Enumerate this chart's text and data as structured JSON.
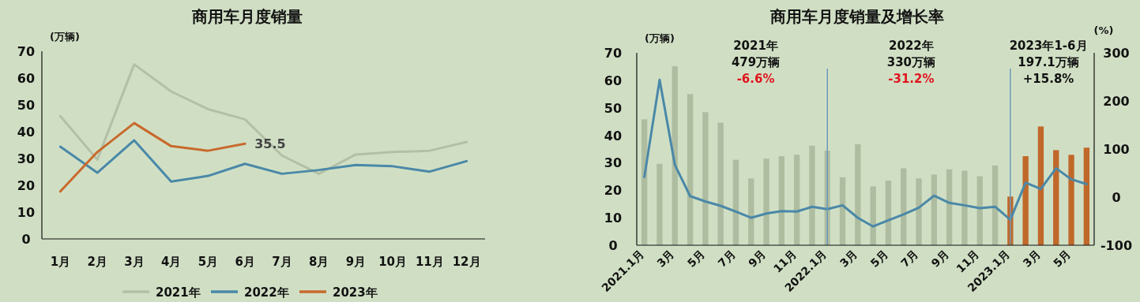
{
  "chart_data": [
    {
      "type": "line",
      "title": "商用车月度销量",
      "ylabel": "(万辆)",
      "categories": [
        "1月",
        "2月",
        "3月",
        "4月",
        "5月",
        "6月",
        "7月",
        "8月",
        "9月",
        "10月",
        "11月",
        "12月"
      ],
      "ylim": [
        0,
        70
      ],
      "yticks": [
        0,
        10,
        20,
        30,
        40,
        50,
        60,
        70
      ],
      "legend": "bottom",
      "grid": false,
      "series": [
        {
          "name": "2021年",
          "color": "#b4bfa8",
          "values": [
            45.8,
            29.6,
            65.1,
            55,
            48.4,
            44.6,
            31.1,
            24.3,
            31.5,
            32.4,
            32.9,
            36.2
          ]
        },
        {
          "name": "2022年",
          "color": "#4a88a8",
          "values": [
            34.4,
            24.7,
            36.8,
            21.4,
            23.5,
            28,
            24.3,
            25.7,
            27.6,
            27.1,
            25.1,
            29
          ]
        },
        {
          "name": "2023年",
          "color": "#c8692c",
          "values": [
            17.7,
            32.4,
            43.2,
            34.6,
            32.9,
            35.5,
            null,
            null,
            null,
            null,
            null,
            null
          ],
          "value_labels": [
            null,
            null,
            null,
            null,
            null,
            "35.5",
            null,
            null,
            null,
            null,
            null,
            null
          ]
        }
      ]
    },
    {
      "type": "bar",
      "title": "商用车月度销量及增长率",
      "ylabel": "(万辆)",
      "y2label": "(%)",
      "categories": [
        "2021.1月",
        null,
        "3月",
        null,
        "5月",
        null,
        "7月",
        null,
        "9月",
        null,
        "11月",
        null,
        "2022.1月",
        null,
        "3月",
        null,
        "5月",
        null,
        "7月",
        null,
        "9月",
        null,
        "11月",
        null,
        "2023.1月",
        null,
        "3月",
        null,
        "5月",
        null
      ],
      "ylim": [
        0,
        70
      ],
      "yticks": [
        0,
        10,
        20,
        30,
        40,
        50,
        60,
        70
      ],
      "y2lim": [
        -100,
        300
      ],
      "y2ticks": [
        -100,
        0,
        100,
        200,
        300
      ],
      "grid": false,
      "legend": false,
      "ref_lines": [
        {
          "axis": "x",
          "value": "2022.1月",
          "color": "#6a9ab8"
        },
        {
          "axis": "x",
          "value": "2023.1月",
          "color": "#6a9ab8"
        }
      ],
      "annotations": [
        "2021年",
        "479万辆",
        "-6.6%",
        "2022年",
        "330万辆",
        "-31.2%",
        "2023年1-6月",
        "197.1万辆",
        "+15.8%"
      ],
      "series": [
        {
          "type": "bar",
          "colors": [
            "#aebca0",
            "#aebca0",
            "#aebca0",
            "#aebca0",
            "#aebca0",
            "#aebca0",
            "#aebca0",
            "#aebca0",
            "#aebca0",
            "#aebca0",
            "#aebca0",
            "#aebca0",
            "#aebca0",
            "#aebca0",
            "#aebca0",
            "#aebca0",
            "#aebca0",
            "#aebca0",
            "#aebca0",
            "#aebca0",
            "#aebca0",
            "#aebca0",
            "#aebca0",
            "#aebca0",
            "#c0682a",
            "#c0682a",
            "#c0682a",
            "#c0682a",
            "#c0682a",
            "#c0682a"
          ],
          "values": [
            45.8,
            29.6,
            65.1,
            55,
            48.4,
            44.6,
            31.1,
            24.3,
            31.5,
            32.4,
            32.9,
            36.2,
            34.4,
            24.7,
            36.8,
            21.4,
            23.5,
            28,
            24.3,
            25.7,
            27.6,
            27.1,
            25.1,
            29,
            17.7,
            32.4,
            43.2,
            34.6,
            32.9,
            35.5
          ]
        },
        {
          "type": "line",
          "axis": "y2",
          "color": "#4a88a8",
          "values": [
            42,
            244,
            67,
            2,
            -9,
            -18,
            -30,
            -43,
            -34,
            -29,
            -30,
            -20,
            -25,
            -17,
            -43,
            -61,
            -48,
            -36,
            -22,
            3,
            -12,
            -17,
            -23,
            -20,
            -47,
            30,
            17,
            60,
            37,
            27
          ]
        }
      ]
    }
  ]
}
